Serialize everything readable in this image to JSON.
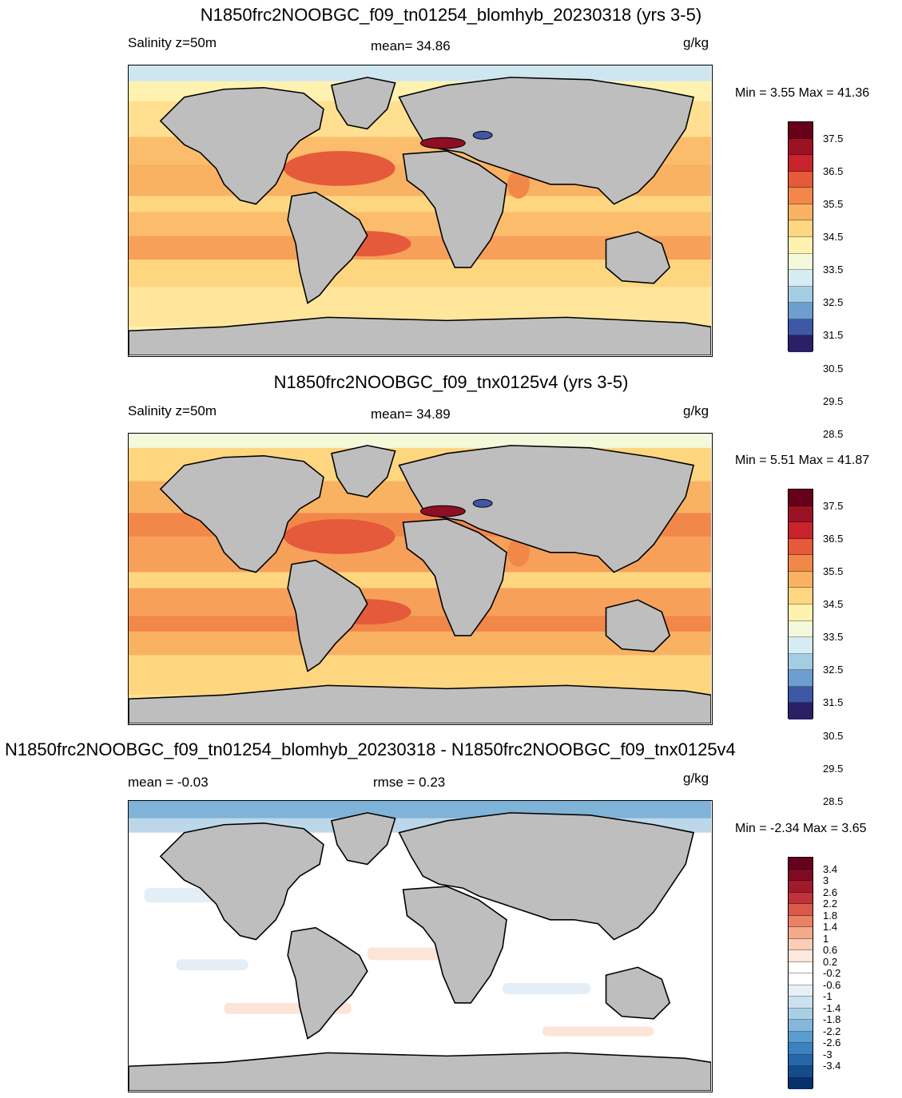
{
  "panels": [
    {
      "title": "N1850frc2NOOBGC_f09_tn01254_blomhyb_20230318 (yrs 3-5)",
      "left_label": "Salinity z=50m",
      "center_label": "mean=  34.86",
      "units": "g/kg",
      "min_label": "Min =   3.55",
      "max_label": "Max =  41.36",
      "colorbar": {
        "colors": [
          "#2c1f66",
          "#3e58a6",
          "#6e9dcf",
          "#a4cde4",
          "#d6ecf3",
          "#f3f9da",
          "#fff2b0",
          "#ffd680",
          "#f9b262",
          "#f2874a",
          "#e45a3a",
          "#c9242d",
          "#9b1225",
          "#670019"
        ],
        "ticks": [
          "37.5",
          "36.5",
          "35.5",
          "34.5",
          "33.5",
          "32.5",
          "31.5",
          "30.5",
          "29.5",
          "28.5"
        ]
      }
    },
    {
      "title": "N1850frc2NOOBGC_f09_tnx0125v4 (yrs 3-5)",
      "left_label": "Salinity z=50m",
      "center_label": "mean=  34.89",
      "units": "g/kg",
      "min_label": "Min =   5.51",
      "max_label": "Max =  41.87",
      "colorbar": {
        "colors": [
          "#2c1f66",
          "#3e58a6",
          "#6e9dcf",
          "#a4cde4",
          "#d6ecf3",
          "#f3f9da",
          "#fff2b0",
          "#ffd680",
          "#f9b262",
          "#f2874a",
          "#e45a3a",
          "#c9242d",
          "#9b1225",
          "#670019"
        ],
        "ticks": [
          "37.5",
          "36.5",
          "35.5",
          "34.5",
          "33.5",
          "32.5",
          "31.5",
          "30.5",
          "29.5",
          "28.5"
        ]
      }
    },
    {
      "title": "N1850frc2NOOBGC_f09_tn01254_blomhyb_20230318 - N1850frc2NOOBGC_f09_tnx0125v4",
      "left_label": "mean =  -0.03",
      "center_label": "rmse =   0.23",
      "units": "g/kg",
      "min_label": "Min =  -2.34",
      "max_label": "Max =   3.65",
      "colorbar": {
        "colors": [
          "#08306b",
          "#134b8b",
          "#2566a8",
          "#3d82c0",
          "#5b9ccf",
          "#83b8dc",
          "#a9cfe6",
          "#cbe1ef",
          "#e6f0f6",
          "#ffffff",
          "#ffffff",
          "#fde8dc",
          "#f9cdb6",
          "#f4aa8a",
          "#ea8264",
          "#d85a4a",
          "#c0333b",
          "#a11a2c",
          "#800a22",
          "#67001f"
        ],
        "ticks": [
          "3.4",
          "3",
          "2.6",
          "2.2",
          "1.8",
          "1.4",
          "1",
          "0.6",
          "0.2",
          "-0.2",
          "-0.6",
          "-1",
          "-1.4",
          "-1.8",
          "-2.2",
          "-2.6",
          "-3",
          "-3.4"
        ]
      }
    }
  ]
}
